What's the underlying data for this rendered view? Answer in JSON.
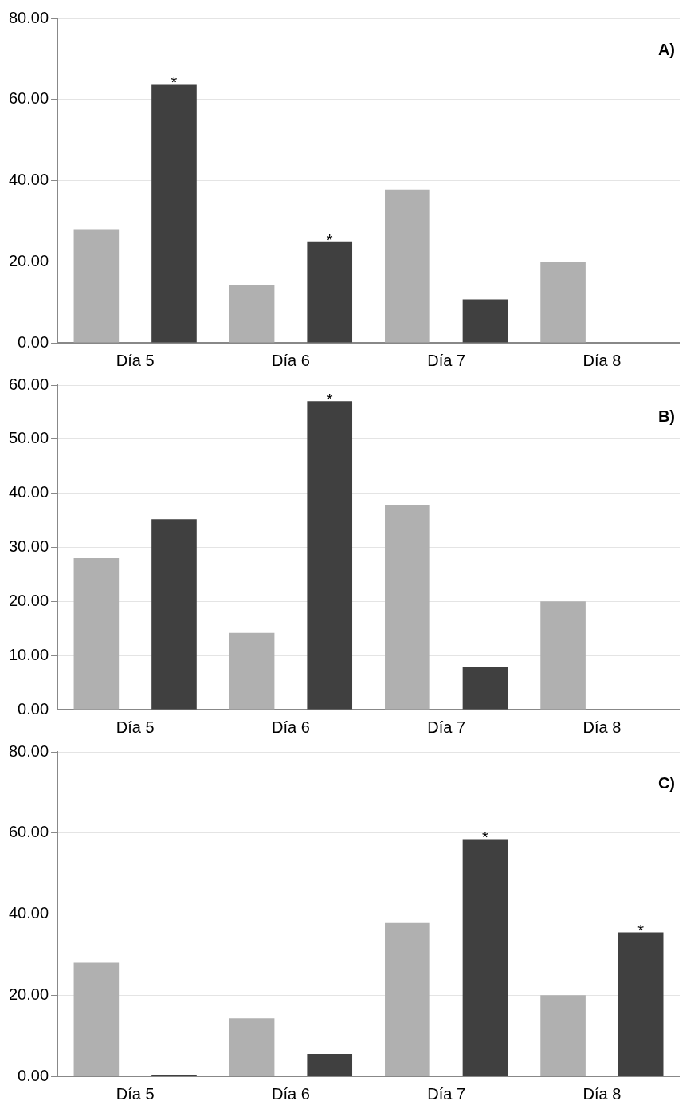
{
  "chart_data": [
    {
      "type": "bar",
      "categories": [
        "Día 5",
        "Día 6",
        "Día 7",
        "Día 8"
      ],
      "series": [
        {
          "color": "#b0b0b0",
          "values": [
            28,
            14.2,
            37.8,
            20
          ]
        },
        {
          "color": "#404040",
          "values": [
            63.8,
            25,
            10.7,
            0
          ],
          "value_labels": [
            "*",
            "*",
            null,
            null
          ]
        }
      ],
      "ylim": [
        0,
        80
      ],
      "yticks": [
        {
          "value": 0,
          "label": "0.00"
        },
        {
          "value": 20,
          "label": "20.00"
        },
        {
          "value": 40,
          "label": "40.00"
        },
        {
          "value": 60,
          "label": "60.00"
        },
        {
          "value": 80,
          "label": "80.00"
        }
      ],
      "grid": "y",
      "legend": false,
      "annotations": [
        "A)"
      ]
    },
    {
      "type": "bar",
      "categories": [
        "Día 5",
        "Día 6",
        "Día 7",
        "Día 8"
      ],
      "series": [
        {
          "color": "#b0b0b0",
          "values": [
            28,
            14.2,
            37.8,
            20
          ]
        },
        {
          "color": "#404040",
          "values": [
            35.2,
            57,
            7.8,
            0
          ],
          "value_labels": [
            null,
            "*",
            null,
            null
          ]
        }
      ],
      "ylim": [
        0,
        60
      ],
      "yticks": [
        {
          "value": 0,
          "label": "0.00"
        },
        {
          "value": 10,
          "label": "10.00"
        },
        {
          "value": 20,
          "label": "20.00"
        },
        {
          "value": 30,
          "label": "30.00"
        },
        {
          "value": 40,
          "label": "40.00"
        },
        {
          "value": 50,
          "label": "50.00"
        },
        {
          "value": 60,
          "label": "60.00"
        }
      ],
      "grid": "y",
      "legend": false,
      "annotations": [
        "B)"
      ]
    },
    {
      "type": "bar",
      "categories": [
        "Día 5",
        "Día 6",
        "Día 7",
        "Día 8"
      ],
      "series": [
        {
          "color": "#b0b0b0",
          "values": [
            28,
            14.3,
            37.8,
            20
          ]
        },
        {
          "color": "#404040",
          "values": [
            0.4,
            5.5,
            58.5,
            35.5
          ],
          "value_labels": [
            null,
            null,
            "*",
            "*"
          ]
        }
      ],
      "ylim": [
        0,
        80
      ],
      "yticks": [
        {
          "value": 0,
          "label": "0.00"
        },
        {
          "value": 20,
          "label": "20.00"
        },
        {
          "value": 40,
          "label": "40.00"
        },
        {
          "value": 60,
          "label": "60.00"
        },
        {
          "value": 80,
          "label": "80.00"
        }
      ],
      "grid": "y",
      "legend": false,
      "annotations": [
        "C)"
      ]
    }
  ]
}
